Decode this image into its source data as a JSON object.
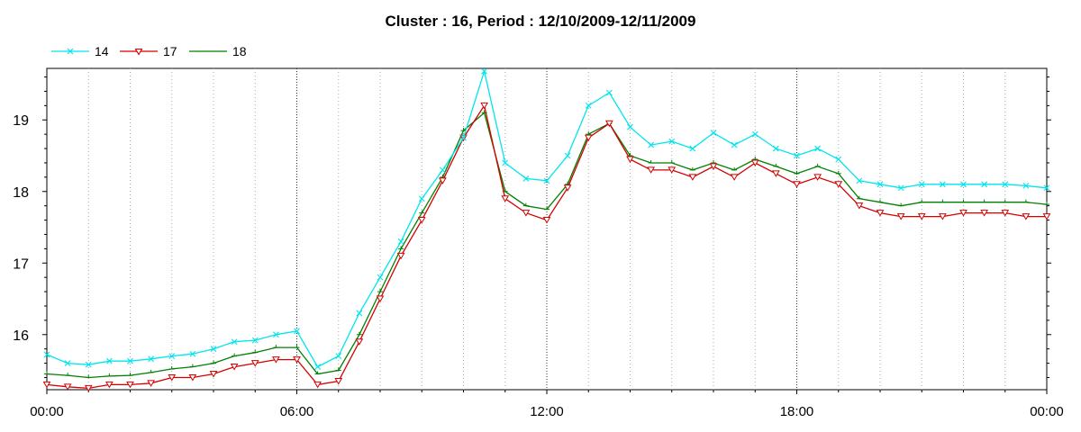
{
  "chart_data": {
    "type": "line",
    "title": "Cluster : 16, Period : 12/10/2009-12/11/2009",
    "xlabel": "",
    "ylabel": "",
    "x_ticks": [
      "00:00",
      "06:00",
      "12:00",
      "18:00",
      "00:00"
    ],
    "y_ticks": [
      "16",
      "17",
      "18",
      "19"
    ],
    "xlim": [
      0,
      24
    ],
    "ylim": [
      15.23,
      19.72
    ],
    "grid": true,
    "legend_position": "top-left",
    "x": [
      0,
      0.5,
      1,
      1.5,
      2,
      2.5,
      3,
      3.5,
      4,
      4.5,
      5,
      5.5,
      6,
      6.5,
      7,
      7.5,
      8,
      8.5,
      9,
      9.5,
      10,
      10.5,
      11,
      11.5,
      12,
      12.5,
      13,
      13.5,
      14,
      14.5,
      15,
      15.5,
      16,
      16.5,
      17,
      17.5,
      18,
      18.5,
      19,
      19.5,
      20,
      20.5,
      21,
      21.5,
      22,
      22.5,
      23,
      23.5,
      24
    ],
    "series": [
      {
        "name": "14",
        "color": "#00e5ee",
        "marker": "x",
        "values": [
          15.72,
          15.6,
          15.58,
          15.63,
          15.63,
          15.66,
          15.7,
          15.73,
          15.8,
          15.9,
          15.92,
          16.0,
          16.05,
          15.55,
          15.7,
          16.3,
          16.8,
          17.3,
          17.9,
          18.3,
          18.75,
          19.68,
          18.4,
          18.18,
          18.15,
          18.5,
          19.2,
          19.38,
          18.9,
          18.65,
          18.7,
          18.6,
          18.82,
          18.65,
          18.8,
          18.6,
          18.5,
          18.6,
          18.45,
          18.15,
          18.1,
          18.05,
          18.1,
          18.1,
          18.1,
          18.1,
          18.1,
          18.08,
          18.05
        ]
      },
      {
        "name": "17",
        "color": "#d40000",
        "marker": "triangle-down",
        "values": [
          15.3,
          15.27,
          15.25,
          15.3,
          15.3,
          15.32,
          15.4,
          15.4,
          15.45,
          15.55,
          15.6,
          15.65,
          15.65,
          15.3,
          15.35,
          15.9,
          16.5,
          17.1,
          17.6,
          18.15,
          18.75,
          19.2,
          17.9,
          17.7,
          17.6,
          18.05,
          18.75,
          18.95,
          18.45,
          18.3,
          18.3,
          18.2,
          18.35,
          18.2,
          18.4,
          18.25,
          18.1,
          18.2,
          18.1,
          17.8,
          17.7,
          17.65,
          17.65,
          17.65,
          17.7,
          17.7,
          17.7,
          17.65,
          17.65
        ]
      },
      {
        "name": "18",
        "color": "#008000",
        "marker": "tick",
        "values": [
          15.45,
          15.43,
          15.4,
          15.42,
          15.43,
          15.47,
          15.52,
          15.55,
          15.6,
          15.7,
          15.75,
          15.82,
          15.82,
          15.45,
          15.5,
          16.0,
          16.6,
          17.2,
          17.7,
          18.2,
          18.85,
          19.1,
          18.0,
          17.8,
          17.75,
          18.1,
          18.8,
          18.95,
          18.5,
          18.4,
          18.4,
          18.3,
          18.4,
          18.3,
          18.45,
          18.35,
          18.25,
          18.35,
          18.25,
          17.9,
          17.85,
          17.8,
          17.85,
          17.85,
          17.85,
          17.85,
          17.85,
          17.85,
          17.82
        ]
      }
    ]
  }
}
